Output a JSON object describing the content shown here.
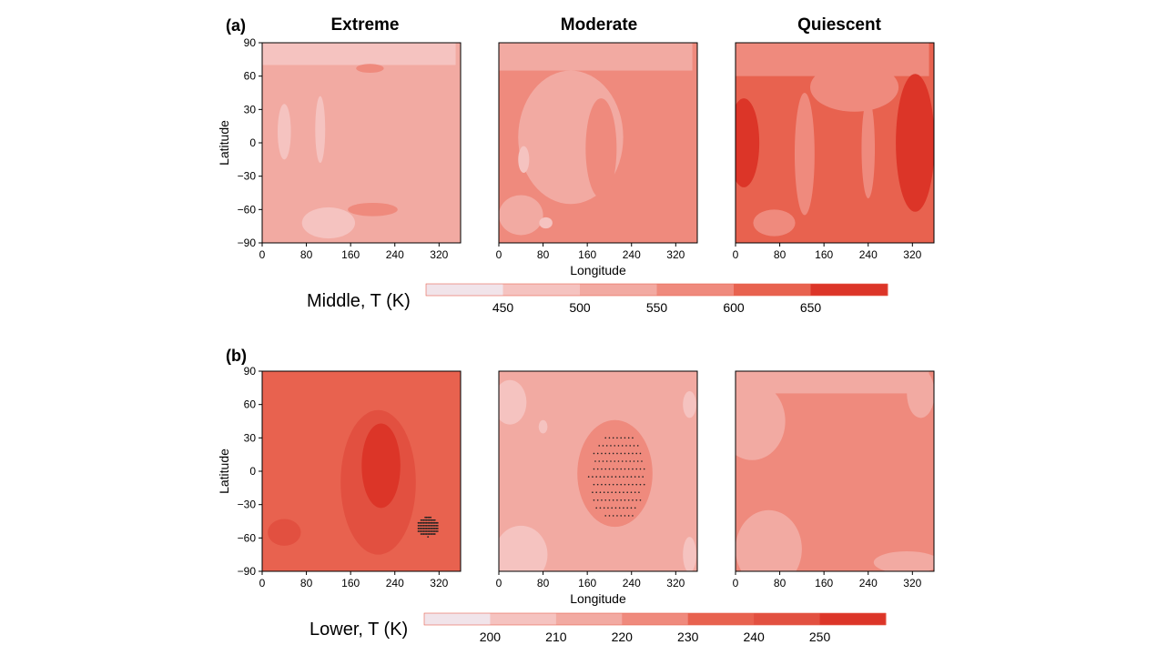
{
  "figure": {
    "panel_a_label": "(a)",
    "panel_b_label": "(b)"
  },
  "chart_data": [
    {
      "type": "heatmap",
      "panel": "(a)",
      "columns": [
        "Extreme",
        "Moderate",
        "Quiescent"
      ],
      "ylabel": "Latitude",
      "xlabel": "Longitude",
      "xlim": [
        0,
        359
      ],
      "ylim": [
        -90,
        90
      ],
      "xticks": [
        0,
        80,
        160,
        240,
        320
      ],
      "yticks": [
        90,
        60,
        30,
        0,
        -30,
        -60,
        -90
      ],
      "colorbar": {
        "label": "Middle, T (K)",
        "ticks": [
          450,
          500,
          550,
          600,
          650
        ],
        "bins": [
          400,
          450,
          500,
          550,
          600,
          650,
          700
        ],
        "colors": [
          "#f1e4ea",
          "#f5c3c0",
          "#f2aaa2",
          "#ef8a7d",
          "#e8624f",
          "#dc3528"
        ]
      },
      "maps": [
        {
          "name": "Extreme",
          "base": 500,
          "regions": [
            {
              "value": 450,
              "shape": "rect",
              "lon": [
                0,
                350
              ],
              "lat": [
                70,
                90
              ]
            },
            {
              "value": 450,
              "shape": "ellipse",
              "lon": 40,
              "lat": 10,
              "rlon": 12,
              "rlat": 25
            },
            {
              "value": 450,
              "shape": "ellipse",
              "lon": 105,
              "lat": 12,
              "rlon": 9,
              "rlat": 30
            },
            {
              "value": 450,
              "shape": "ellipse",
              "lon": 120,
              "lat": -72,
              "rlon": 48,
              "rlat": 14
            },
            {
              "value": 550,
              "shape": "ellipse",
              "lon": 200,
              "lat": -60,
              "rlon": 45,
              "rlat": 6
            },
            {
              "value": 550,
              "shape": "ellipse",
              "lon": 195,
              "lat": 67,
              "rlon": 25,
              "rlat": 4
            }
          ]
        },
        {
          "name": "Moderate",
          "base": 550,
          "regions": [
            {
              "value": 500,
              "shape": "rect",
              "lon": [
                0,
                350
              ],
              "lat": [
                65,
                90
              ]
            },
            {
              "value": 500,
              "shape": "ellipse",
              "lon": 130,
              "lat": 5,
              "rlon": 95,
              "rlat": 60
            },
            {
              "value": 550,
              "shape": "ellipse",
              "lon": 185,
              "lat": -5,
              "rlon": 28,
              "rlat": 45
            },
            {
              "value": 500,
              "shape": "ellipse",
              "lon": 40,
              "lat": -65,
              "rlon": 40,
              "rlat": 18
            },
            {
              "value": 450,
              "shape": "ellipse",
              "lon": 85,
              "lat": -72,
              "rlon": 12,
              "rlat": 5
            },
            {
              "value": 450,
              "shape": "ellipse",
              "lon": 45,
              "lat": -15,
              "rlon": 10,
              "rlat": 12
            }
          ]
        },
        {
          "name": "Quiescent",
          "base": 600,
          "regions": [
            {
              "value": 550,
              "shape": "rect",
              "lon": [
                0,
                350
              ],
              "lat": [
                60,
                90
              ]
            },
            {
              "value": 550,
              "shape": "ellipse",
              "lon": 215,
              "lat": 50,
              "rlon": 80,
              "rlat": 22
            },
            {
              "value": 550,
              "shape": "ellipse",
              "lon": 125,
              "lat": -10,
              "rlon": 18,
              "rlat": 55
            },
            {
              "value": 550,
              "shape": "ellipse",
              "lon": 240,
              "lat": -5,
              "rlon": 12,
              "rlat": 45
            },
            {
              "value": 550,
              "shape": "ellipse",
              "lon": 70,
              "lat": -72,
              "rlon": 38,
              "rlat": 12
            },
            {
              "value": 650,
              "shape": "ellipse",
              "lon": 15,
              "lat": 0,
              "rlon": 28,
              "rlat": 40
            },
            {
              "value": 650,
              "shape": "ellipse",
              "lon": 325,
              "lat": 0,
              "rlon": 35,
              "rlat": 62
            }
          ]
        }
      ]
    },
    {
      "type": "heatmap",
      "panel": "(b)",
      "columns": [
        "Extreme",
        "Moderate",
        "Quiescent"
      ],
      "ylabel": "Latitude",
      "xlabel": "Longitude",
      "xlim": [
        0,
        359
      ],
      "ylim": [
        -90,
        90
      ],
      "xticks": [
        0,
        80,
        160,
        240,
        320
      ],
      "yticks": [
        90,
        60,
        30,
        0,
        -30,
        -60,
        -90
      ],
      "colorbar": {
        "label": "Lower, T (K)",
        "ticks": [
          200,
          210,
          220,
          230,
          240,
          250
        ],
        "bins": [
          190,
          200,
          210,
          220,
          230,
          240,
          250,
          260
        ],
        "colors": [
          "#f1e4ea",
          "#f5c3c0",
          "#f2aaa2",
          "#ef8a7d",
          "#e8624f",
          "#e25040",
          "#dc3528"
        ]
      },
      "maps": [
        {
          "name": "Extreme",
          "base": 230,
          "regions": [
            {
              "value": 240,
              "shape": "ellipse",
              "lon": 210,
              "lat": -10,
              "rlon": 68,
              "rlat": 65
            },
            {
              "value": 250,
              "shape": "ellipse",
              "lon": 215,
              "lat": 5,
              "rlon": 35,
              "rlat": 38
            },
            {
              "value": 240,
              "shape": "ellipse",
              "lon": 40,
              "lat": -55,
              "rlon": 30,
              "rlat": 12
            }
          ],
          "stipple": {
            "lon": 300,
            "lat": -50,
            "rlon": 20,
            "rlat": 9,
            "dense": true
          }
        },
        {
          "name": "Moderate",
          "base": 210,
          "regions": [
            {
              "value": 220,
              "shape": "ellipse",
              "lon": 210,
              "lat": -2,
              "rlon": 68,
              "rlat": 48
            },
            {
              "value": 200,
              "shape": "ellipse",
              "lon": 20,
              "lat": 62,
              "rlon": 30,
              "rlat": 20
            },
            {
              "value": 200,
              "shape": "ellipse",
              "lon": 80,
              "lat": 40,
              "rlon": 8,
              "rlat": 6
            },
            {
              "value": 200,
              "shape": "ellipse",
              "lon": 40,
              "lat": -75,
              "rlon": 48,
              "rlat": 26
            },
            {
              "value": 200,
              "shape": "ellipse",
              "lon": 345,
              "lat": 60,
              "rlon": 12,
              "rlat": 12
            },
            {
              "value": 200,
              "shape": "ellipse",
              "lon": 345,
              "lat": -75,
              "rlon": 12,
              "rlat": 16
            }
          ],
          "stipple": {
            "lon": 215,
            "lat": -5,
            "rlon": 50,
            "rlat": 42,
            "dense": false
          }
        },
        {
          "name": "Quiescent",
          "base": 220,
          "regions": [
            {
              "value": 210,
              "shape": "rect",
              "lon": [
                0,
                350
              ],
              "lat": [
                70,
                90
              ]
            },
            {
              "value": 210,
              "shape": "ellipse",
              "lon": 30,
              "lat": 45,
              "rlon": 60,
              "rlat": 35
            },
            {
              "value": 210,
              "shape": "ellipse",
              "lon": 335,
              "lat": 70,
              "rlon": 25,
              "rlat": 22
            },
            {
              "value": 210,
              "shape": "ellipse",
              "lon": 60,
              "lat": -70,
              "rlon": 60,
              "rlat": 35
            },
            {
              "value": 210,
              "shape": "ellipse",
              "lon": 310,
              "lat": -82,
              "rlon": 60,
              "rlat": 10
            }
          ]
        }
      ]
    }
  ]
}
